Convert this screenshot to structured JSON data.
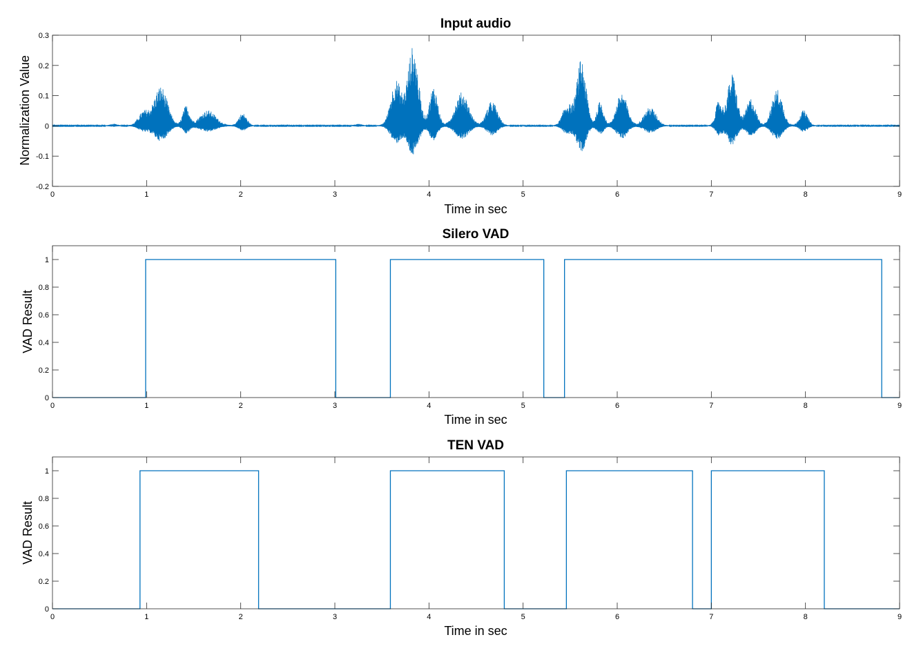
{
  "chart_data": [
    {
      "type": "line",
      "title": "Input audio",
      "xlabel": "Time in sec",
      "ylabel": "Normalization Value",
      "xlim": [
        0,
        9
      ],
      "ylim": [
        -0.2,
        0.3
      ],
      "xticks": [
        "0",
        "1",
        "2",
        "3",
        "4",
        "5",
        "6",
        "7",
        "8",
        "9"
      ],
      "yticks": [
        "-0.2",
        "-0.1",
        "0",
        "0.1",
        "0.2",
        "0.3"
      ],
      "ytick_values": [
        -0.2,
        -0.1,
        0,
        0.1,
        0.2,
        0.3
      ],
      "grid": false,
      "line_color": "#0072BD",
      "series": [
        {
          "bursts": [
            {
              "t": 0.65,
              "w": 0.05,
              "amp": 0.005
            },
            {
              "t": 0.97,
              "w": 0.08,
              "amp": 0.045
            },
            {
              "t": 1.15,
              "w": 0.1,
              "amp": 0.13
            },
            {
              "t": 1.42,
              "w": 0.05,
              "amp": 0.065
            },
            {
              "t": 1.65,
              "w": 0.12,
              "amp": 0.05
            },
            {
              "t": 2.02,
              "w": 0.06,
              "amp": 0.04
            },
            {
              "t": 3.25,
              "w": 0.05,
              "amp": 0.005
            },
            {
              "t": 3.65,
              "w": 0.08,
              "amp": 0.15
            },
            {
              "t": 3.83,
              "w": 0.08,
              "amp": 0.26
            },
            {
              "t": 4.05,
              "w": 0.06,
              "amp": 0.13
            },
            {
              "t": 4.35,
              "w": 0.1,
              "amp": 0.11
            },
            {
              "t": 4.67,
              "w": 0.08,
              "amp": 0.08
            },
            {
              "t": 5.47,
              "w": 0.07,
              "amp": 0.07
            },
            {
              "t": 5.62,
              "w": 0.07,
              "amp": 0.22
            },
            {
              "t": 5.82,
              "w": 0.05,
              "amp": 0.08
            },
            {
              "t": 6.05,
              "w": 0.08,
              "amp": 0.11
            },
            {
              "t": 6.35,
              "w": 0.09,
              "amp": 0.06
            },
            {
              "t": 7.08,
              "w": 0.05,
              "amp": 0.08
            },
            {
              "t": 7.22,
              "w": 0.07,
              "amp": 0.17
            },
            {
              "t": 7.42,
              "w": 0.07,
              "amp": 0.09
            },
            {
              "t": 7.7,
              "w": 0.08,
              "amp": 0.12
            },
            {
              "t": 7.98,
              "w": 0.06,
              "amp": 0.05
            }
          ],
          "noise_amp": 0.002,
          "samples": 4400
        }
      ]
    },
    {
      "type": "line",
      "title": "Silero VAD",
      "xlabel": "Time in sec",
      "ylabel": "VAD Result",
      "xlim": [
        0,
        9
      ],
      "ylim": [
        0,
        1.1
      ],
      "xticks": [
        "0",
        "1",
        "2",
        "3",
        "4",
        "5",
        "6",
        "7",
        "8",
        "9"
      ],
      "yticks": [
        "0",
        "0.2",
        "0.4",
        "0.6",
        "0.8",
        "1"
      ],
      "ytick_values": [
        0,
        0.2,
        0.4,
        0.6,
        0.8,
        1
      ],
      "grid": false,
      "line_color": "#0072BD",
      "series": [
        {
          "x": [
            0,
            0.99,
            0.99,
            3.01,
            3.01,
            3.59,
            3.59,
            5.22,
            5.22,
            5.44,
            5.44,
            8.81,
            8.81,
            9.0
          ],
          "y": [
            0,
            0,
            1,
            1,
            0,
            0,
            1,
            1,
            0,
            0,
            1,
            1,
            0,
            0
          ]
        }
      ]
    },
    {
      "type": "line",
      "title": "TEN VAD",
      "xlabel": "Time in sec",
      "ylabel": "VAD Result",
      "xlim": [
        0,
        9
      ],
      "ylim": [
        0,
        1.1
      ],
      "xticks": [
        "0",
        "1",
        "2",
        "3",
        "4",
        "5",
        "6",
        "7",
        "8",
        "9"
      ],
      "yticks": [
        "0",
        "0.2",
        "0.4",
        "0.6",
        "0.8",
        "1"
      ],
      "ytick_values": [
        0,
        0.2,
        0.4,
        0.6,
        0.8,
        1
      ],
      "grid": false,
      "line_color": "#0072BD",
      "series": [
        {
          "x": [
            0,
            0.93,
            0.93,
            2.19,
            2.19,
            3.59,
            3.59,
            4.8,
            4.8,
            5.46,
            5.46,
            6.8,
            6.8,
            7.0,
            7.0,
            8.2,
            8.2,
            9.0
          ],
          "y": [
            0,
            0,
            1,
            1,
            0,
            0,
            1,
            1,
            0,
            0,
            1,
            1,
            0,
            0,
            1,
            1,
            0,
            0
          ]
        }
      ]
    }
  ]
}
